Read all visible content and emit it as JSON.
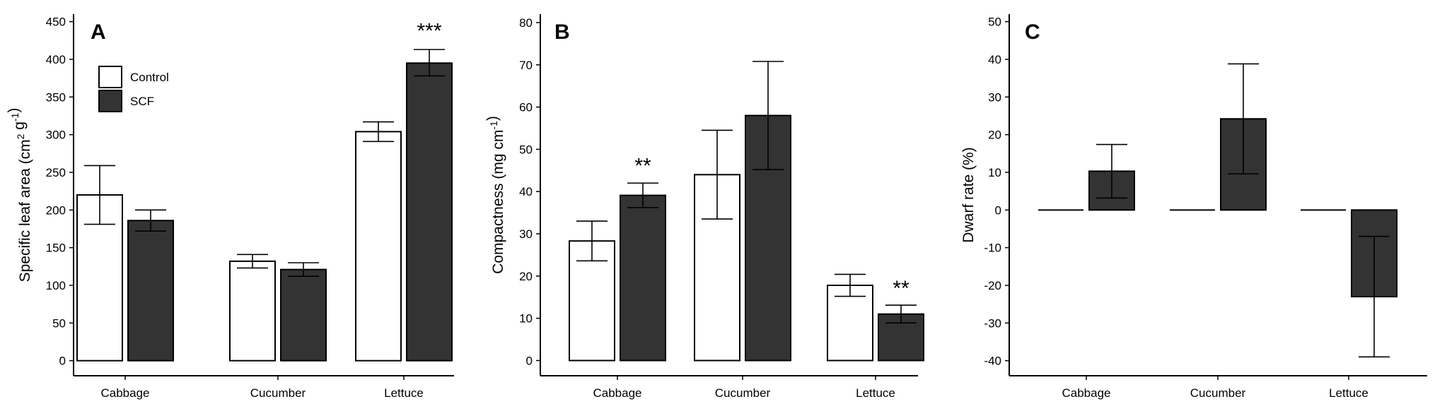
{
  "colors": {
    "control": "#ffffff",
    "scf": "#333333",
    "stroke": "#000000"
  },
  "legend": {
    "items": [
      "Control",
      "SCF"
    ],
    "placement": "top-left (panel A)"
  },
  "chart_data": [
    {
      "type": "bar",
      "panel": "A",
      "categories": [
        "Cabbage",
        "Cucumber",
        "Lettuce"
      ],
      "series": [
        {
          "name": "Control",
          "values": [
            220,
            132,
            304
          ],
          "err_low": [
            181,
            123,
            291
          ],
          "err_high": [
            259,
            141,
            317
          ]
        },
        {
          "name": "SCF",
          "values": [
            186,
            121,
            395
          ],
          "err_low": [
            172,
            112,
            378
          ],
          "err_high": [
            200,
            130,
            413
          ]
        }
      ],
      "significance": [
        {
          "category": "Lettuce",
          "text": "***",
          "value": 440
        }
      ],
      "ylabel": "Specific leaf area (cm",
      "ylabel_sup1": "2",
      "ylabel_mid": " g",
      "ylabel_sup2": "-1",
      "ylabel_end": ")",
      "ylim": [
        -20,
        460
      ],
      "yticks": [
        0,
        50,
        100,
        150,
        200,
        250,
        300,
        350,
        400,
        450
      ]
    },
    {
      "type": "bar",
      "panel": "B",
      "categories": [
        "Cabbage",
        "Cucumber",
        "Lettuce"
      ],
      "series": [
        {
          "name": "Control",
          "values": [
            28.3,
            44,
            17.8
          ],
          "err_low": [
            23.6,
            33.5,
            15.2
          ],
          "err_high": [
            33,
            54.5,
            20.4
          ]
        },
        {
          "name": "SCF",
          "values": [
            39.1,
            58,
            11
          ],
          "err_low": [
            36.2,
            45.2,
            8.9
          ],
          "err_high": [
            42,
            70.8,
            13.1
          ]
        }
      ],
      "significance": [
        {
          "category": "Cabbage",
          "text": "**",
          "value": 46.5
        },
        {
          "category": "Lettuce",
          "text": "**",
          "value": 17.5
        }
      ],
      "ylabel": "Compactness (mg cm",
      "ylabel_sup1": "-1",
      "ylabel_end": ")",
      "ylim": [
        -3.6,
        82
      ],
      "yticks": [
        0,
        10,
        20,
        30,
        40,
        50,
        60,
        70,
        80
      ]
    },
    {
      "type": "bar",
      "panel": "C",
      "categories": [
        "Cabbage",
        "Cucumber",
        "Lettuce"
      ],
      "series": [
        {
          "name": "Control",
          "values": [
            0,
            0,
            0
          ],
          "err_low": [
            0,
            0,
            0
          ],
          "err_high": [
            0,
            0,
            0
          ]
        },
        {
          "name": "SCF",
          "values": [
            10.3,
            24.2,
            -23
          ],
          "err_low": [
            3.2,
            9.6,
            -39
          ],
          "err_high": [
            17.4,
            38.8,
            -7
          ]
        }
      ],
      "significance": [],
      "ylabel": "Dwarf rate (%)",
      "ylim": [
        -44,
        52
      ],
      "yticks": [
        -40,
        -30,
        -20,
        -10,
        0,
        10,
        20,
        30,
        40,
        50
      ]
    }
  ]
}
